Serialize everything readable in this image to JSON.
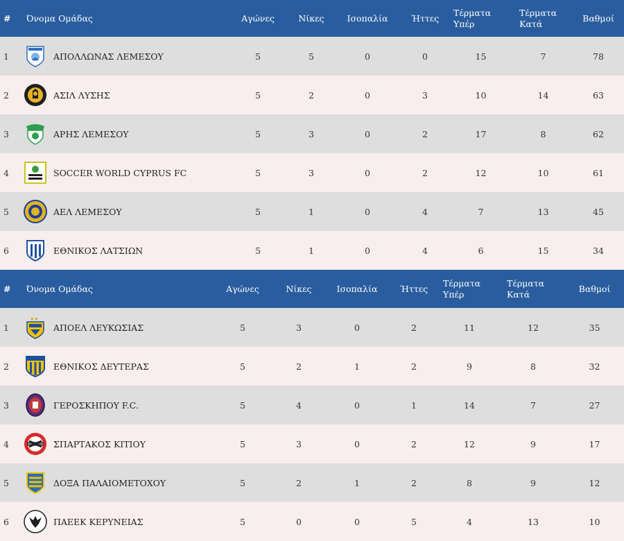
{
  "columns": [
    "#",
    "Όνομα Ομάδας",
    "Αγώνες",
    "Νίκες",
    "Ισοπαλία",
    "Ήττες",
    "Τέρματα Υπέρ",
    "Τέρματα Κατά",
    "Βαθμοί"
  ],
  "colors": {
    "header_bg": "#2a5d9f",
    "row_odd": "#dedede",
    "row_even": "#f8eeee"
  },
  "tables": [
    {
      "rows": [
        {
          "pos": "1",
          "team": "ΑΠΟΛΛΩΝΑΣ ΛΕΜΕΣΟΥ",
          "logo": "apollon-crest-icon",
          "played": "5",
          "wins": "5",
          "draws": "0",
          "losses": "0",
          "gf": "15",
          "ga": "7",
          "pts": "78"
        },
        {
          "pos": "2",
          "team": "ΑΣΙΛ ΛΥΣΗΣ",
          "logo": "asil-crest-icon",
          "played": "5",
          "wins": "2",
          "draws": "0",
          "losses": "3",
          "gf": "10",
          "ga": "14",
          "pts": "63"
        },
        {
          "pos": "3",
          "team": "ΑΡΗΣ ΛΕΜΕΣΟΥ",
          "logo": "aris-crest-icon",
          "played": "5",
          "wins": "3",
          "draws": "0",
          "losses": "2",
          "gf": "17",
          "ga": "8",
          "pts": "62"
        },
        {
          "pos": "4",
          "team": "SOCCER WORLD CYPRUS FC",
          "logo": "soccer-world-crest-icon",
          "played": "5",
          "wins": "3",
          "draws": "0",
          "losses": "2",
          "gf": "12",
          "ga": "10",
          "pts": "61"
        },
        {
          "pos": "5",
          "team": "ΑΕΛ ΛΕΜΕΣΟΥ",
          "logo": "ael-crest-icon",
          "played": "5",
          "wins": "1",
          "draws": "0",
          "losses": "4",
          "gf": "7",
          "ga": "13",
          "pts": "45"
        },
        {
          "pos": "6",
          "team": "ΕΘΝΙΚΟΣ ΛΑΤΣΙΩΝ",
          "logo": "ethnikos-latsion-crest-icon",
          "played": "5",
          "wins": "1",
          "draws": "0",
          "losses": "4",
          "gf": "6",
          "ga": "15",
          "pts": "34"
        }
      ]
    },
    {
      "rows": [
        {
          "pos": "1",
          "team": "ΑΠΟΕΛ ΛΕΥΚΩΣΙΑΣ",
          "logo": "apoel-crest-icon",
          "played": "5",
          "wins": "3",
          "draws": "0",
          "losses": "2",
          "gf": "11",
          "ga": "12",
          "pts": "35"
        },
        {
          "pos": "2",
          "team": "ΕΘΝΙΚΟΣ ΔΕΥΤΕΡΑΣ",
          "logo": "ethnikos-defteras-crest-icon",
          "played": "5",
          "wins": "2",
          "draws": "1",
          "losses": "2",
          "gf": "9",
          "ga": "8",
          "pts": "32"
        },
        {
          "pos": "3",
          "team": "ΓΕΡΟΣΚΗΠΟΥ F.C.",
          "logo": "geroskipou-crest-icon",
          "played": "5",
          "wins": "4",
          "draws": "0",
          "losses": "1",
          "gf": "14",
          "ga": "7",
          "pts": "27"
        },
        {
          "pos": "4",
          "team": "ΣΠΑΡΤΑΚΟΣ ΚΙΤΙΟΥ",
          "logo": "spartakos-crest-icon",
          "played": "5",
          "wins": "3",
          "draws": "0",
          "losses": "2",
          "gf": "12",
          "ga": "9",
          "pts": "17"
        },
        {
          "pos": "5",
          "team": "ΔΟΞΑ ΠΑΛΑΙΟΜΕΤΟΧΟΥ",
          "logo": "doxa-crest-icon",
          "played": "5",
          "wins": "2",
          "draws": "1",
          "losses": "2",
          "gf": "8",
          "ga": "9",
          "pts": "12"
        },
        {
          "pos": "6",
          "team": "ΠΑΕΕΚ ΚΕΡΥΝΕΙΑΣ",
          "logo": "paeek-crest-icon",
          "played": "5",
          "wins": "0",
          "draws": "0",
          "losses": "5",
          "gf": "4",
          "ga": "13",
          "pts": "10"
        }
      ]
    }
  ]
}
